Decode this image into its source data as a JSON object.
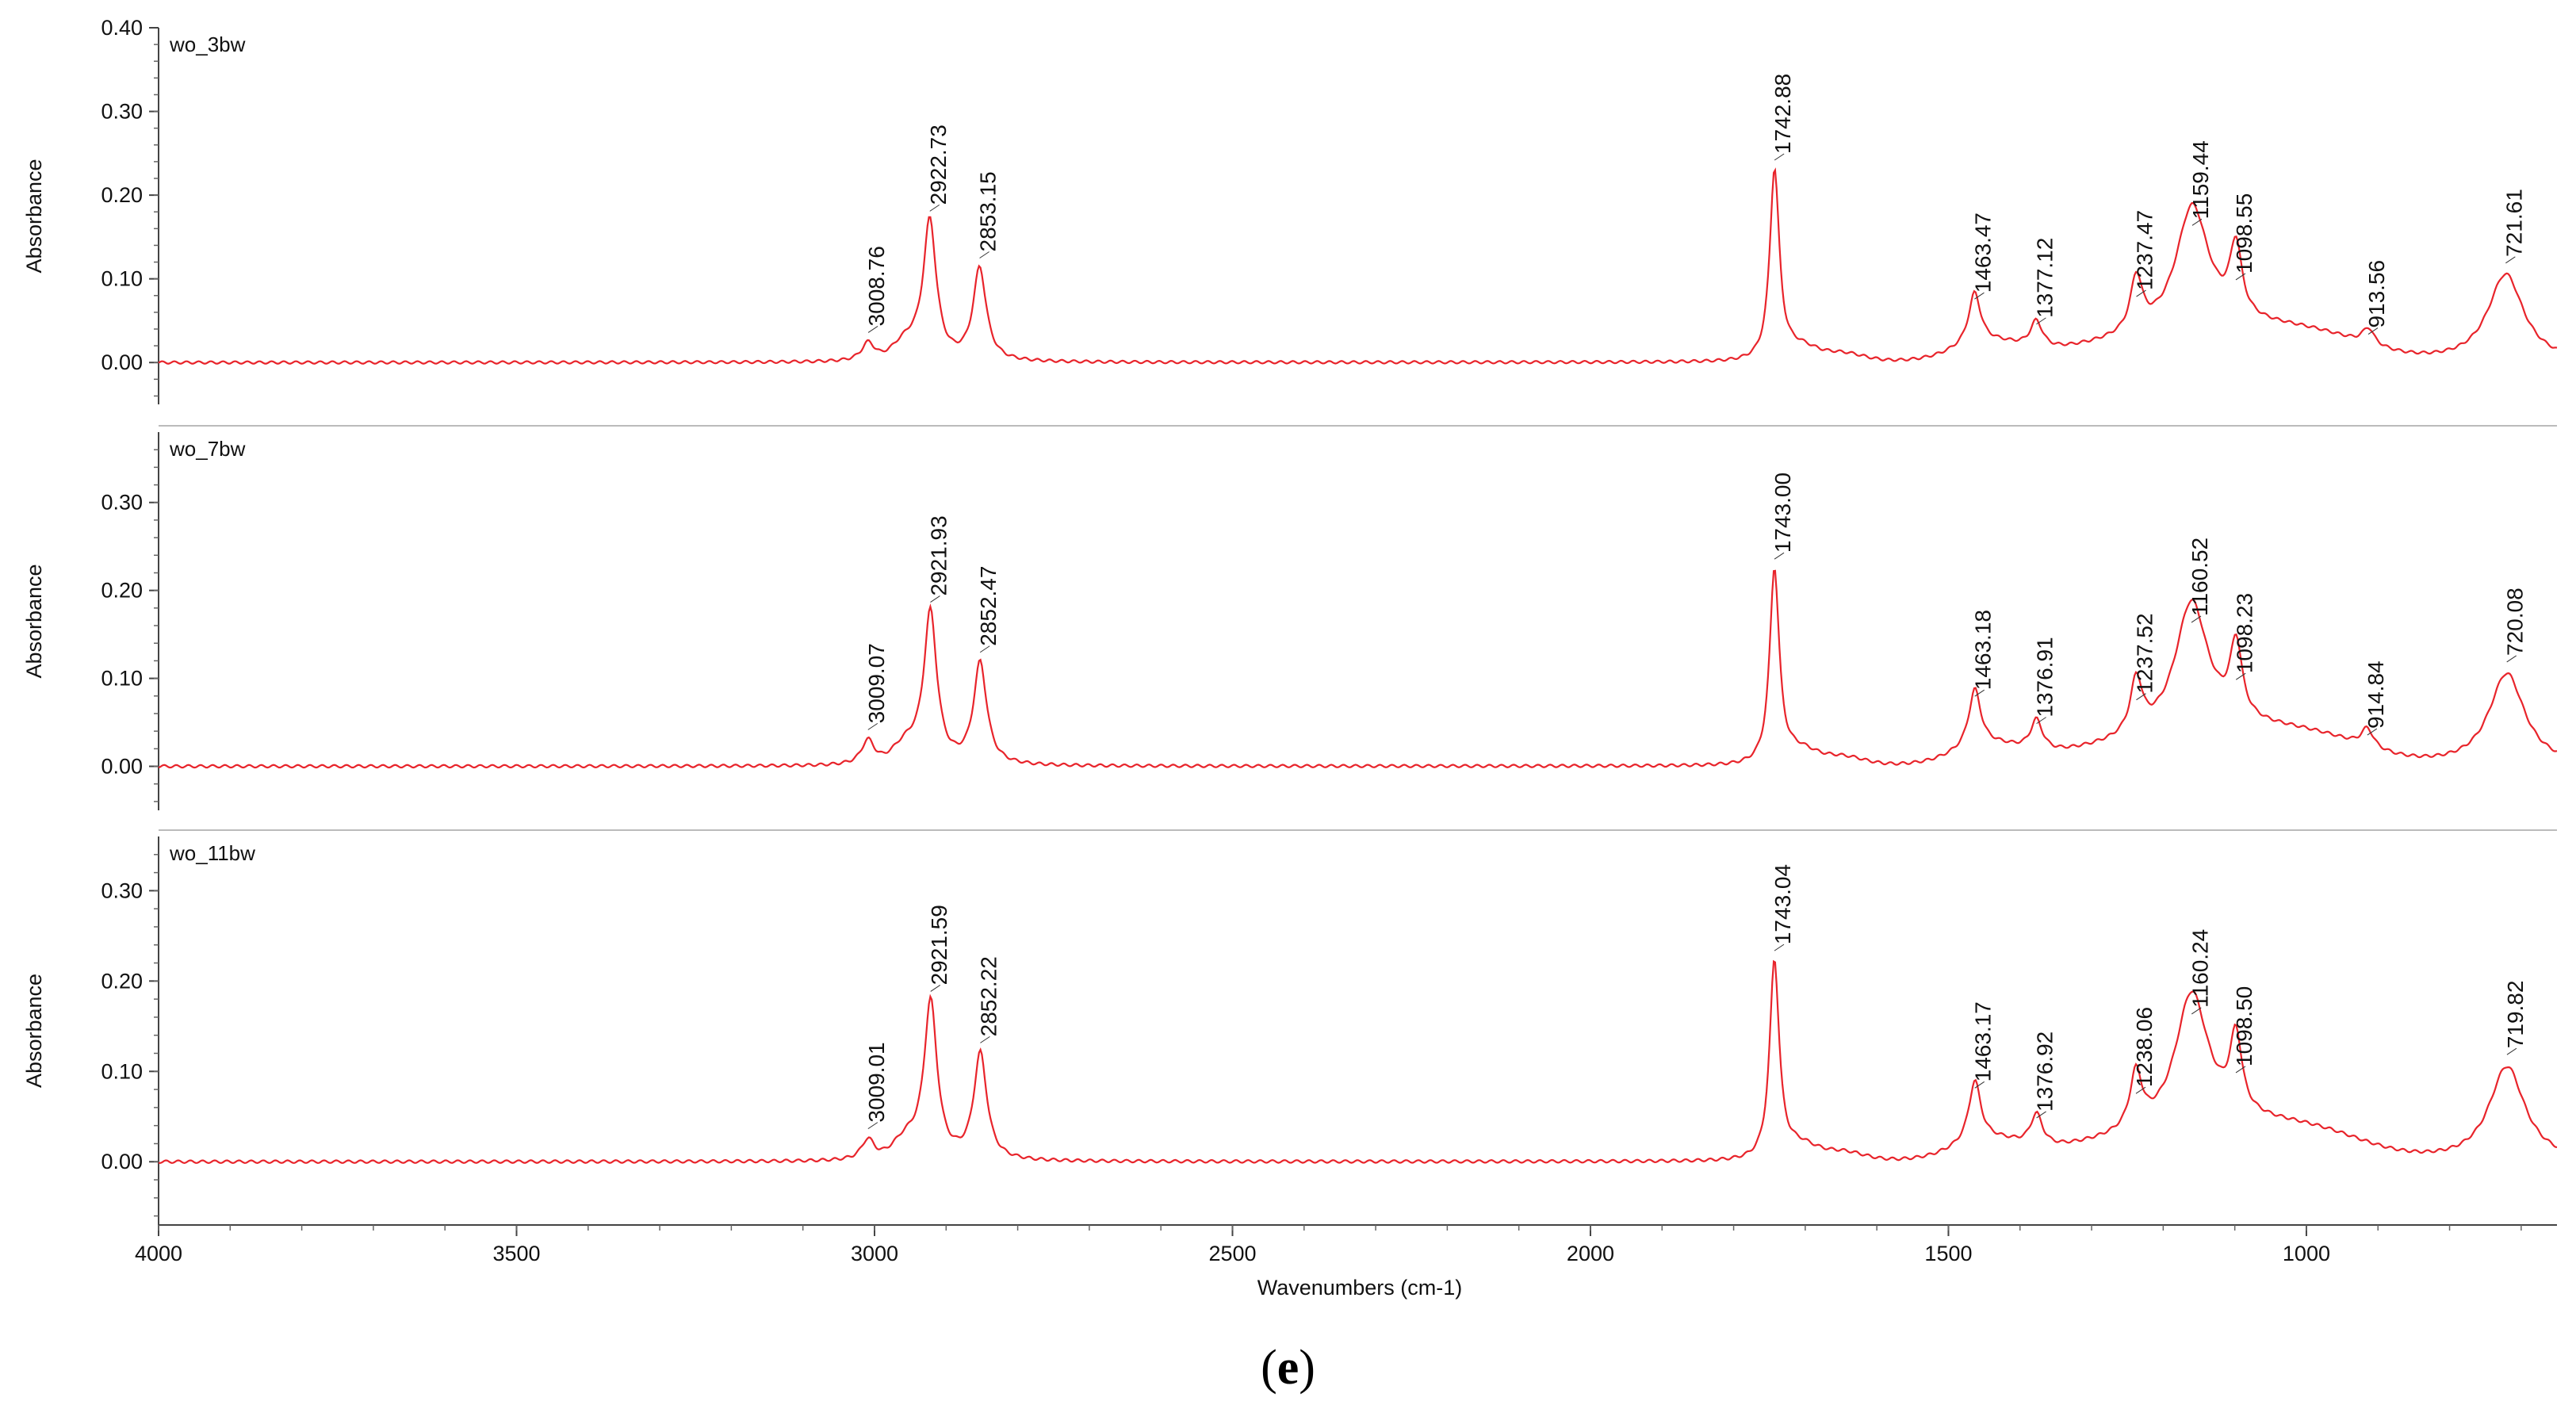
{
  "figure": {
    "caption_letter": "e",
    "x_axis_label": "Wavenumbers (cm-1)",
    "x_ticks": [
      4000,
      3500,
      3000,
      2500,
      2000,
      1500,
      1000
    ],
    "line_color": "#e8242b"
  },
  "chart_data": [
    {
      "type": "line",
      "title": "wo_3bw",
      "xlabel": "Wavenumbers (cm-1)",
      "ylabel": "Absorbance",
      "xlim": [
        4000,
        650
      ],
      "ylim": [
        -0.05,
        0.4
      ],
      "y_ticks": [
        "0.00",
        "0.10",
        "0.20",
        "0.30",
        "0.40"
      ],
      "peaks": [
        {
          "x": 3008.76,
          "y": 0.032,
          "label": "3008.76"
        },
        {
          "x": 2922.73,
          "y": 0.177,
          "label": "2922.73"
        },
        {
          "x": 2853.15,
          "y": 0.121,
          "label": "2853.15"
        },
        {
          "x": 1742.88,
          "y": 0.238,
          "label": "1742.88"
        },
        {
          "x": 1463.47,
          "y": 0.072,
          "label": "1463.47"
        },
        {
          "x": 1377.12,
          "y": 0.042,
          "label": "1377.12"
        },
        {
          "x": 1237.47,
          "y": 0.075,
          "label": "1237.47"
        },
        {
          "x": 1159.44,
          "y": 0.16,
          "label": "1159.44"
        },
        {
          "x": 1098.55,
          "y": 0.095,
          "label": "1098.55"
        },
        {
          "x": 913.56,
          "y": 0.03,
          "label": "913.56"
        },
        {
          "x": 721.61,
          "y": 0.115,
          "label": "721.61"
        }
      ]
    },
    {
      "type": "line",
      "title": "wo_7bw",
      "xlabel": "Wavenumbers (cm-1)",
      "ylabel": "Absorbance",
      "xlim": [
        4000,
        650
      ],
      "ylim": [
        -0.05,
        0.38
      ],
      "y_ticks": [
        "0.00",
        "0.10",
        "0.20",
        "0.30"
      ],
      "peaks": [
        {
          "x": 3009.07,
          "y": 0.038,
          "label": "3009.07"
        },
        {
          "x": 2921.93,
          "y": 0.183,
          "label": "2921.93"
        },
        {
          "x": 2852.47,
          "y": 0.126,
          "label": "2852.47"
        },
        {
          "x": 1743.0,
          "y": 0.232,
          "label": "1743.00"
        },
        {
          "x": 1463.18,
          "y": 0.076,
          "label": "1463.18"
        },
        {
          "x": 1376.91,
          "y": 0.045,
          "label": "1376.91"
        },
        {
          "x": 1237.52,
          "y": 0.072,
          "label": "1237.52"
        },
        {
          "x": 1160.52,
          "y": 0.16,
          "label": "1160.52"
        },
        {
          "x": 1098.23,
          "y": 0.095,
          "label": "1098.23"
        },
        {
          "x": 914.84,
          "y": 0.032,
          "label": "914.84"
        },
        {
          "x": 720.08,
          "y": 0.115,
          "label": "720.08"
        }
      ]
    },
    {
      "type": "line",
      "title": "wo_11bw",
      "xlabel": "Wavenumbers (cm-1)",
      "ylabel": "Absorbance",
      "xlim": [
        4000,
        650
      ],
      "ylim": [
        -0.07,
        0.36
      ],
      "y_ticks": [
        "0.00",
        "0.10",
        "0.20",
        "0.30"
      ],
      "peaks": [
        {
          "x": 3009.01,
          "y": 0.033,
          "label": "3009.01"
        },
        {
          "x": 2921.59,
          "y": 0.185,
          "label": "2921.59"
        },
        {
          "x": 2852.22,
          "y": 0.128,
          "label": "2852.22"
        },
        {
          "x": 1743.04,
          "y": 0.23,
          "label": "1743.04"
        },
        {
          "x": 1463.17,
          "y": 0.078,
          "label": "1463.17"
        },
        {
          "x": 1376.92,
          "y": 0.045,
          "label": "1376.92"
        },
        {
          "x": 1238.06,
          "y": 0.072,
          "label": "1238.06"
        },
        {
          "x": 1160.24,
          "y": 0.16,
          "label": "1160.24"
        },
        {
          "x": 1098.5,
          "y": 0.095,
          "label": "1098.50"
        },
        {
          "x": 719.82,
          "y": 0.115,
          "label": "719.82"
        }
      ]
    }
  ]
}
